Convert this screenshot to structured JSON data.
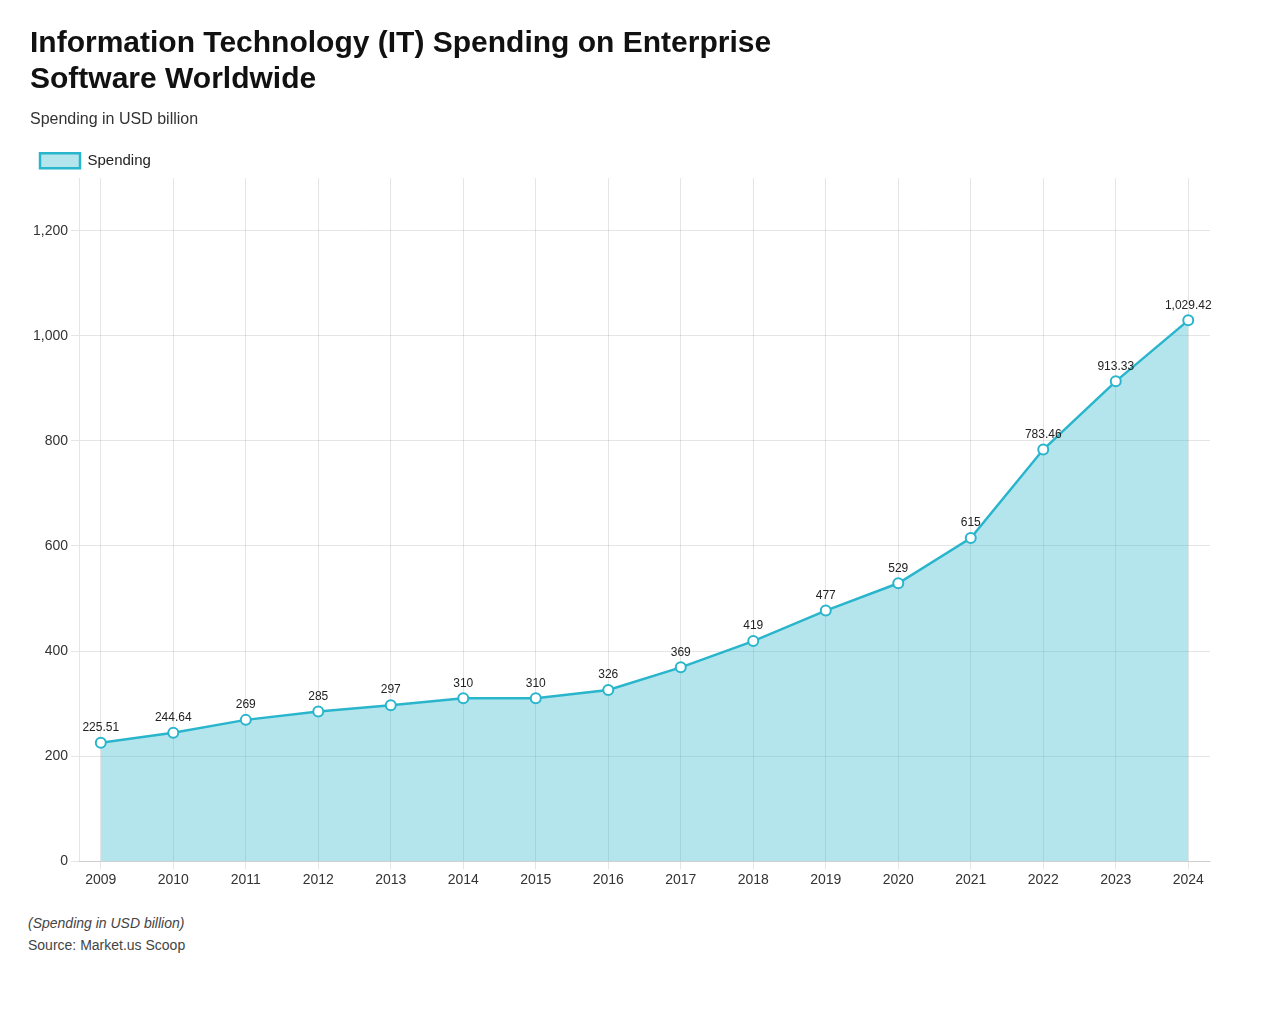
{
  "chart_data": {
    "type": "line",
    "title": [
      "Information Technology (IT) Spending on Enterprise",
      "Software Worldwide"
    ],
    "subtitle": "Spending in USD billion",
    "annotations": [
      "(Spending in USD billion)",
      "Source: Market.us Scoop"
    ],
    "x": [
      2009,
      2010,
      2011,
      2012,
      2013,
      2014,
      2015,
      2016,
      2017,
      2018,
      2019,
      2020,
      2021,
      2022,
      2023,
      2024
    ],
    "series": [
      {
        "name": "Spending",
        "color": "#29B5CC",
        "marker": "circle",
        "values": [
          225.51,
          244.64,
          269,
          285,
          297,
          310,
          310,
          326,
          369,
          419,
          477,
          529,
          615,
          783.46,
          913.33,
          1029.42
        ],
        "value_labels": [
          "225.51",
          "244.64",
          "269",
          "285",
          "297",
          "310",
          "310",
          "326",
          "369",
          "419",
          "477",
          "529",
          "615",
          "783.46",
          "913.33",
          "1,029.42"
        ]
      }
    ],
    "xlim": [
      2008.7,
      2024.3
    ],
    "xticks": [
      2009,
      2010,
      2011,
      2012,
      2013,
      2014,
      2015,
      2016,
      2017,
      2018,
      2019,
      2020,
      2021,
      2022,
      2023,
      2024
    ],
    "ylim": [
      0,
      1300
    ],
    "yticks": [
      0,
      200,
      400,
      600,
      800,
      {
        "value": 1000,
        "label": "1,000"
      },
      {
        "value": 1200,
        "label": "1,200"
      }
    ],
    "grid": true,
    "legend": "upper left",
    "data_labels": true
  }
}
